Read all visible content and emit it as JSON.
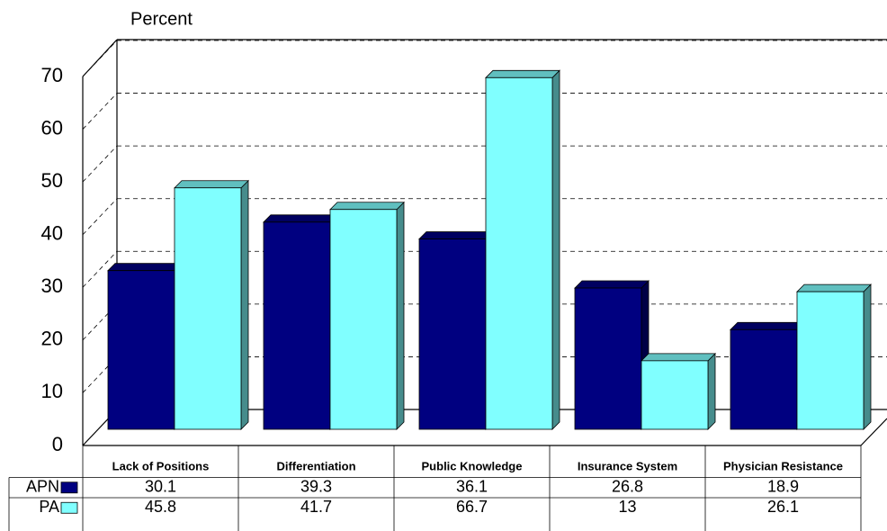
{
  "chart_data": {
    "type": "bar3d",
    "y_label": "Percent",
    "categories": [
      "Lack of Positions",
      "Differentiation",
      "Public Knowledge",
      "Insurance System",
      "Physician Resistance"
    ],
    "series": [
      {
        "name": "APN",
        "color": "#000080",
        "values": [
          30.1,
          39.3,
          36.1,
          26.8,
          18.9
        ]
      },
      {
        "name": "PA",
        "color": "#80ffff",
        "values": [
          45.8,
          41.7,
          66.7,
          13,
          26.1
        ]
      }
    ],
    "ylim": [
      0,
      70
    ],
    "yticks": [
      0,
      10,
      20,
      30,
      40,
      50,
      60,
      70
    ],
    "grid": true
  }
}
